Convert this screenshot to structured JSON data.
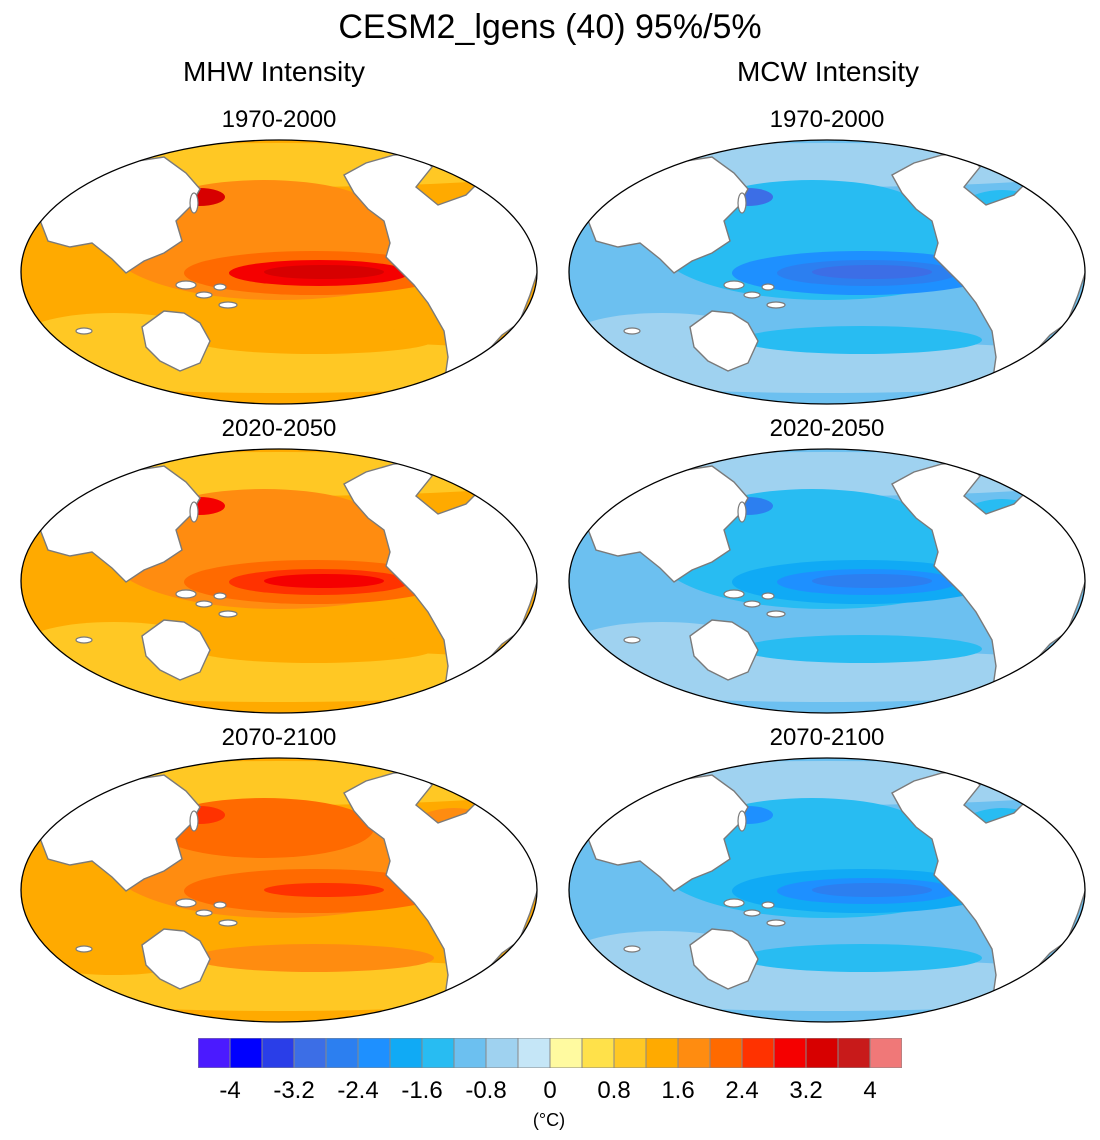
{
  "title": "CESM2_lgens (40) 95%/5%",
  "columns": [
    {
      "title": "MHW Intensity",
      "kind": "warm",
      "panels": [
        {
          "period": "1970-2000",
          "equator_peak": 3.2,
          "kuroshio_peak": 3.2,
          "background": 1.2
        },
        {
          "period": "2020-2050",
          "equator_peak": 2.8,
          "kuroshio_peak": 2.8,
          "background": 1.2
        },
        {
          "period": "2070-2100",
          "equator_peak": 2.6,
          "kuroshio_peak": 2.4,
          "background": 1.4
        }
      ]
    },
    {
      "title": "MCW Intensity",
      "kind": "cold",
      "panels": [
        {
          "period": "1970-2000",
          "equator_peak": -3.2,
          "kuroshio_peak": -3.0,
          "background": -1.0
        },
        {
          "period": "2020-2050",
          "equator_peak": -2.8,
          "kuroshio_peak": -2.6,
          "background": -1.0
        },
        {
          "period": "2070-2100",
          "equator_peak": -2.6,
          "kuroshio_peak": -2.4,
          "background": -1.0
        }
      ]
    }
  ],
  "colorbar": {
    "colors": [
      "#4b1aff",
      "#0000ff",
      "#2a3ee8",
      "#3c6ee6",
      "#2c7ff0",
      "#1e90ff",
      "#10aaf5",
      "#28bcf2",
      "#6cc0f0",
      "#9fd2f0",
      "#c5e6f7",
      "#fffaa0",
      "#ffe14a",
      "#ffc824",
      "#ffaa00",
      "#ff8c10",
      "#ff6a00",
      "#ff3200",
      "#f50000",
      "#d70000",
      "#c81a1a",
      "#f07878"
    ],
    "tick_labels": [
      "-4",
      "-3.2",
      "-2.4",
      "-1.6",
      "-0.8",
      "0",
      "0.8",
      "1.6",
      "2.4",
      "3.2",
      "4"
    ],
    "unit": "(°C)"
  }
}
